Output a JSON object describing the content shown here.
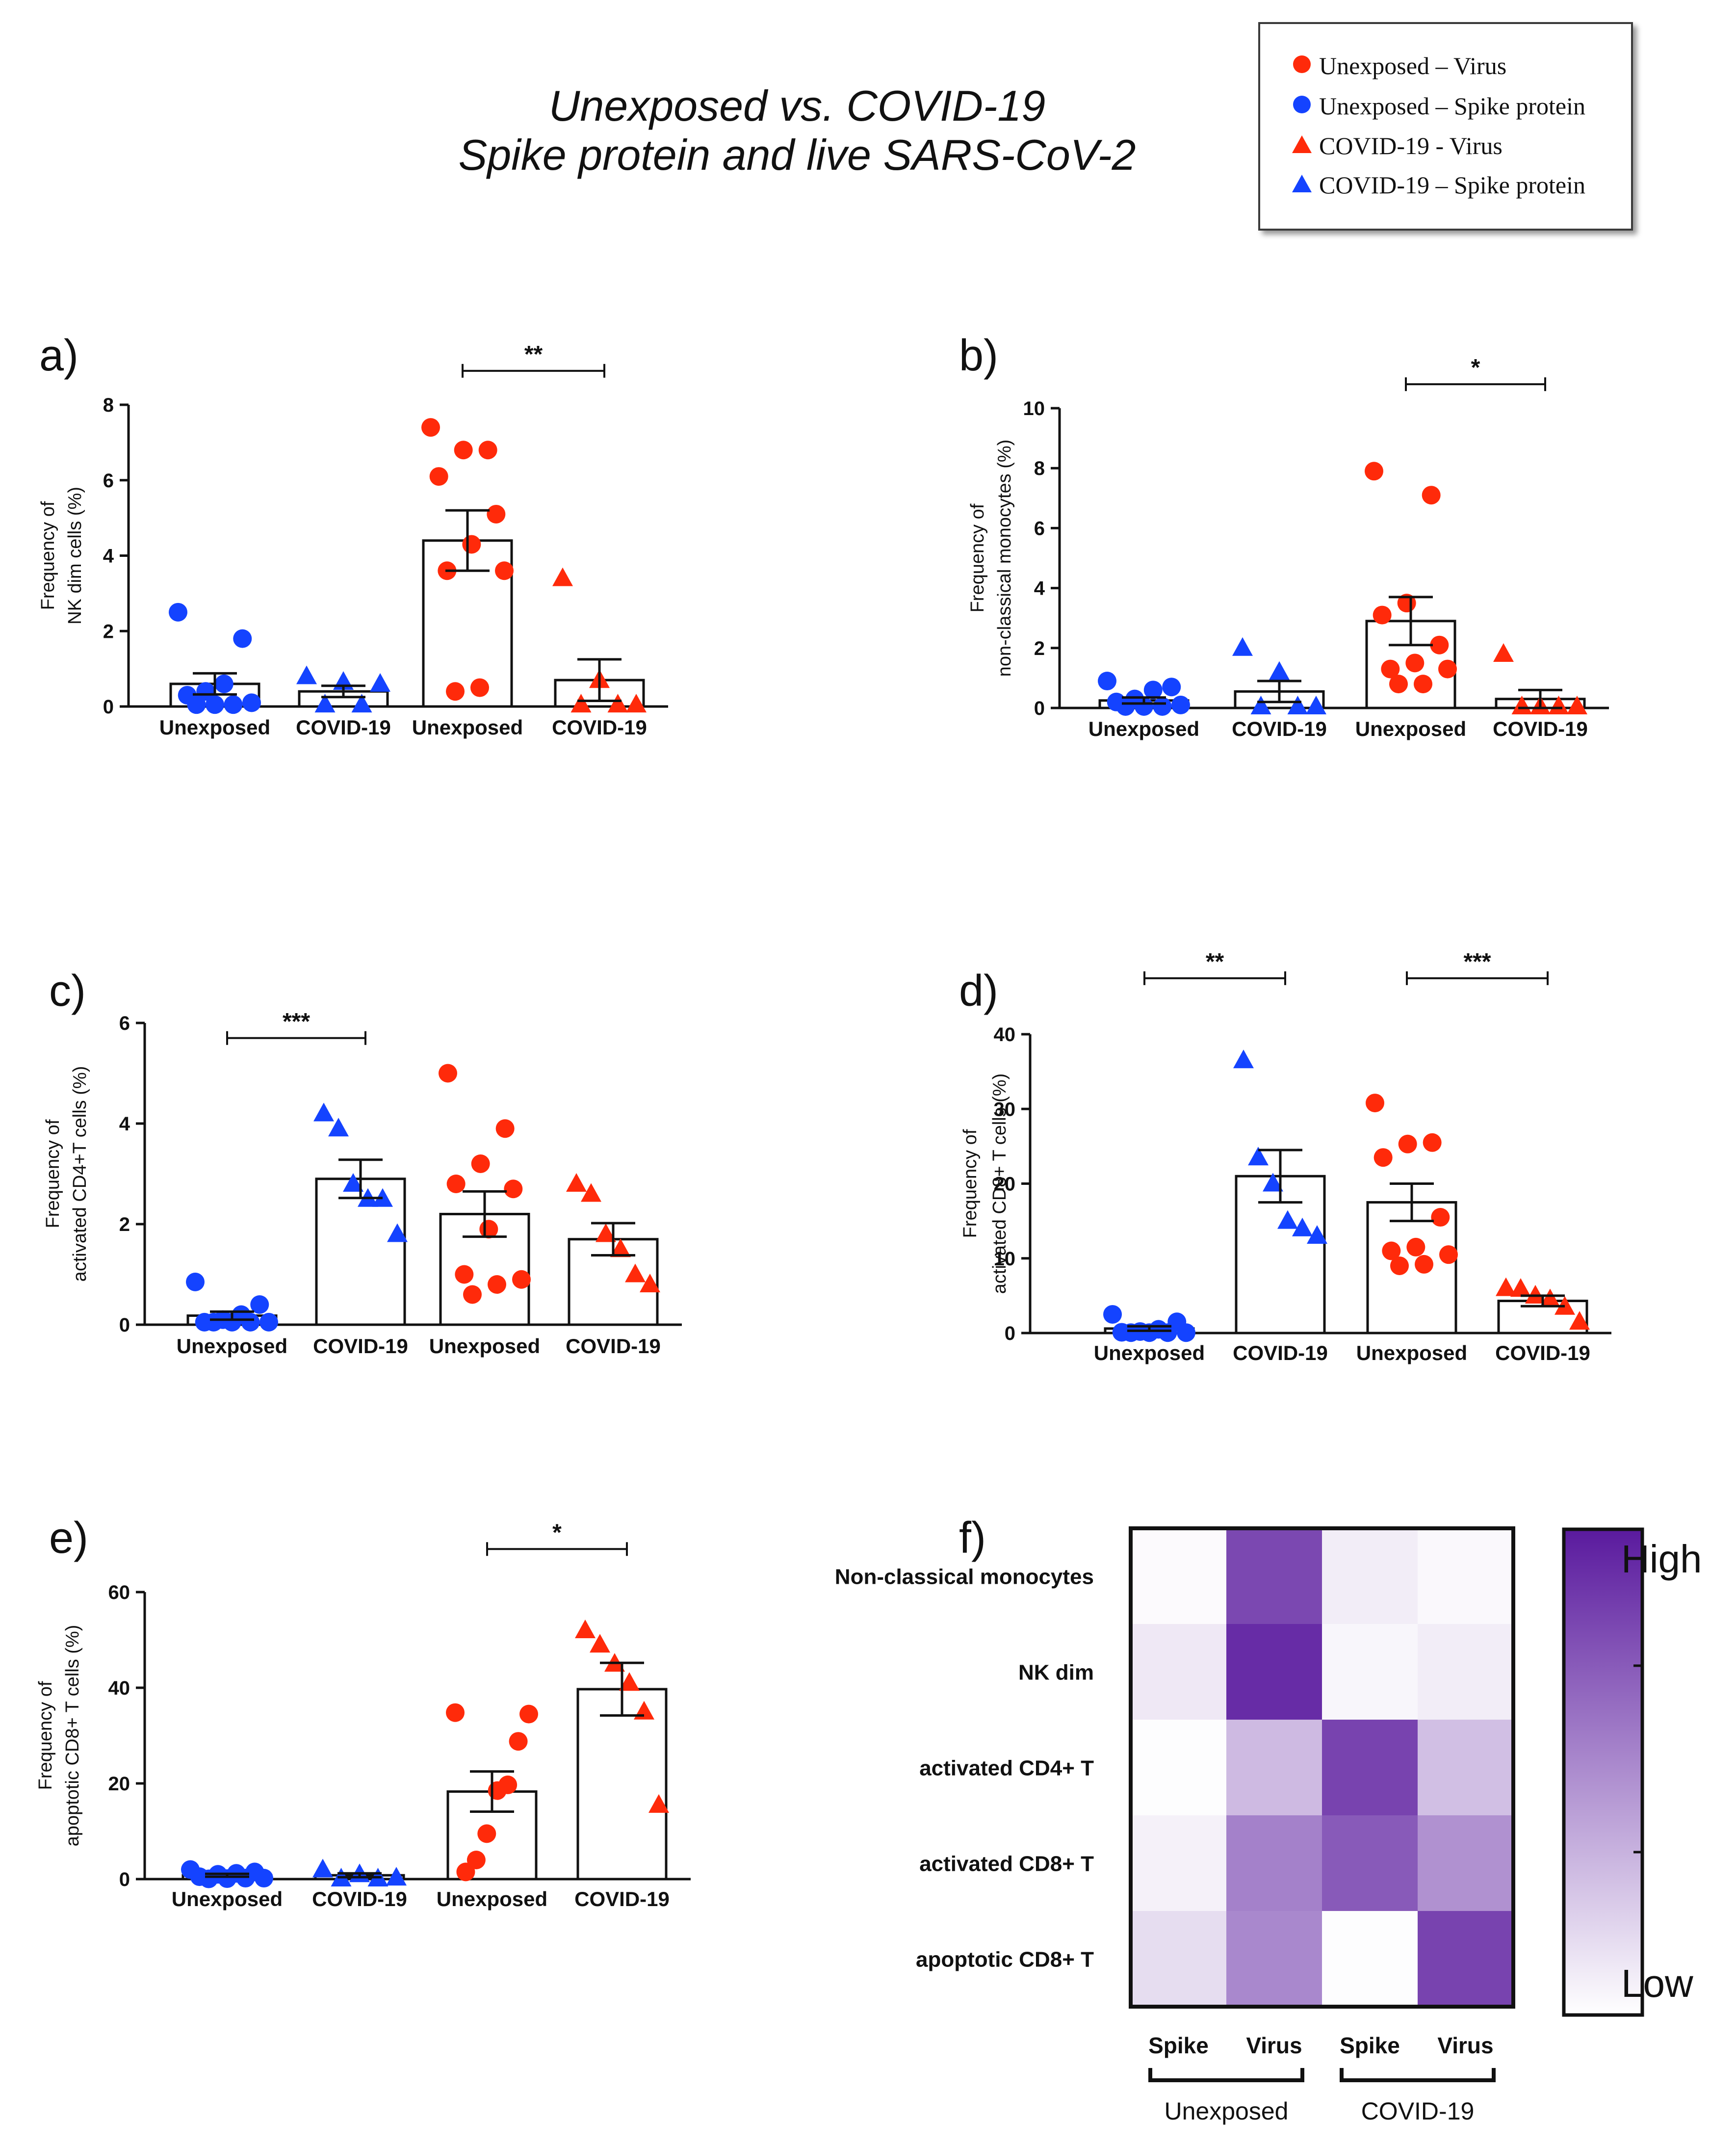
{
  "title": {
    "line1": "Unexposed vs. COVID-19",
    "line2": "Spike protein and live SARS-CoV-2"
  },
  "legend": {
    "items": [
      {
        "label": "Unexposed – Virus",
        "shape": "circle",
        "color": "#ff2a0a"
      },
      {
        "label": "Unexposed – Spike protein",
        "shape": "circle",
        "color": "#1443ff"
      },
      {
        "label": "COVID-19 - Virus",
        "shape": "triangle",
        "color": "#ff2a0a"
      },
      {
        "label": "COVID-19 – Spike protein",
        "shape": "triangle",
        "color": "#1443ff"
      }
    ]
  },
  "colors": {
    "virus": "#ff2a0a",
    "spike": "#1443ff",
    "heat_high": "#5a1a9e",
    "heat_low": "#ffffff"
  },
  "chart_data": [
    {
      "panel": "a)",
      "type": "bar",
      "ylabel_lines": [
        "Frequency of",
        "NK dim cells (%)"
      ],
      "ylabel_super": "dim",
      "ylim": [
        0,
        8
      ],
      "yticks": [
        0,
        2,
        4,
        6,
        8
      ],
      "categories": [
        "Unexposed",
        "COVID-19",
        "Unexposed",
        "COVID-19"
      ],
      "groups": [
        {
          "mean": 0.6,
          "sem": 0.28,
          "shape": "circle",
          "color": "spike",
          "points": [
            2.5,
            1.8,
            0.6,
            0.4,
            0.3,
            0.1,
            0.05,
            0.05,
            0.05
          ]
        },
        {
          "mean": 0.4,
          "sem": 0.15,
          "shape": "triangle",
          "color": "spike",
          "points": [
            0.8,
            0.65,
            0.6,
            0.05,
            0.05
          ]
        },
        {
          "mean": 4.4,
          "sem": 0.8,
          "shape": "circle",
          "color": "virus",
          "points": [
            7.4,
            6.8,
            6.8,
            6.1,
            5.1,
            4.3,
            3.6,
            3.6,
            0.5,
            0.4
          ]
        },
        {
          "mean": 0.7,
          "sem": 0.55,
          "shape": "triangle",
          "color": "virus",
          "points": [
            3.4,
            0.7,
            0.05,
            0.05,
            0.05
          ]
        }
      ],
      "significance": [
        {
          "from": 2,
          "to": 3,
          "label": "**",
          "y": 8.9
        }
      ]
    },
    {
      "panel": "b)",
      "type": "bar",
      "ylabel_lines": [
        "Frequency of",
        "non-classical monocytes (%)"
      ],
      "ylim": [
        0,
        10
      ],
      "yticks": [
        0,
        2,
        4,
        6,
        8,
        10
      ],
      "categories": [
        "Unexposed",
        "COVID-19",
        "Unexposed",
        "COVID-19"
      ],
      "groups": [
        {
          "mean": 0.25,
          "sem": 0.1,
          "shape": "circle",
          "color": "spike",
          "points": [
            0.9,
            0.7,
            0.6,
            0.3,
            0.2,
            0.1,
            0.05,
            0.05,
            0.05
          ]
        },
        {
          "mean": 0.55,
          "sem": 0.35,
          "shape": "triangle",
          "color": "spike",
          "points": [
            2.0,
            1.2,
            0.05,
            0.05,
            0.05
          ]
        },
        {
          "mean": 2.9,
          "sem": 0.8,
          "shape": "circle",
          "color": "virus",
          "points": [
            7.9,
            7.1,
            3.5,
            3.1,
            2.1,
            1.5,
            1.3,
            1.3,
            0.8,
            0.8
          ]
        },
        {
          "mean": 0.3,
          "sem": 0.3,
          "shape": "triangle",
          "color": "virus",
          "points": [
            1.8,
            0.05,
            0.05,
            0.05,
            0.05
          ]
        }
      ],
      "significance": [
        {
          "from": 2,
          "to": 3,
          "label": "*",
          "y": 10.8
        }
      ]
    },
    {
      "panel": "c)",
      "type": "bar",
      "ylabel_lines": [
        "Frequency of",
        "activated CD4+T cells (%)"
      ],
      "ylim": [
        0,
        6
      ],
      "yticks": [
        0,
        2,
        4,
        6
      ],
      "categories": [
        "Unexposed",
        "COVID-19",
        "Unexposed",
        "COVID-19"
      ],
      "groups": [
        {
          "mean": 0.18,
          "sem": 0.08,
          "shape": "circle",
          "color": "spike",
          "points": [
            0.85,
            0.4,
            0.2,
            0.1,
            0.05,
            0.05,
            0.05,
            0.05,
            0.05
          ]
        },
        {
          "mean": 2.9,
          "sem": 0.38,
          "shape": "triangle",
          "color": "spike",
          "points": [
            4.2,
            3.9,
            2.8,
            2.5,
            2.5,
            1.8
          ]
        },
        {
          "mean": 2.2,
          "sem": 0.45,
          "shape": "circle",
          "color": "virus",
          "points": [
            5.0,
            3.9,
            3.2,
            2.8,
            2.7,
            1.9,
            1.0,
            0.9,
            0.8,
            0.6
          ]
        },
        {
          "mean": 1.7,
          "sem": 0.32,
          "shape": "triangle",
          "color": "virus",
          "points": [
            2.8,
            2.6,
            1.8,
            1.5,
            1.0,
            0.8
          ]
        }
      ],
      "significance": [
        {
          "from": 0,
          "to": 1,
          "label": "***",
          "y": 5.7
        }
      ]
    },
    {
      "panel": "d)",
      "type": "bar",
      "ylabel_lines": [
        "Frequency of",
        "activated CD8+ T cells (%)"
      ],
      "ylim": [
        0,
        40
      ],
      "yticks": [
        0,
        10,
        20,
        30,
        40
      ],
      "categories": [
        "Unexposed",
        "COVID-19",
        "Unexposed",
        "COVID-19"
      ],
      "groups": [
        {
          "mean": 0.6,
          "sem": 0.3,
          "shape": "circle",
          "color": "spike",
          "points": [
            2.5,
            1.5,
            0.5,
            0.2,
            0.1,
            0.05,
            0.05,
            0.05,
            0.05
          ]
        },
        {
          "mean": 21.0,
          "sem": 3.5,
          "shape": "triangle",
          "color": "spike",
          "points": [
            36.5,
            23.5,
            20.0,
            15.0,
            14.0,
            13.0
          ]
        },
        {
          "mean": 17.5,
          "sem": 2.5,
          "shape": "circle",
          "color": "virus",
          "points": [
            30.8,
            25.5,
            25.3,
            23.5,
            15.5,
            11.5,
            11.0,
            10.5,
            9.2,
            9.0
          ]
        },
        {
          "mean": 4.3,
          "sem": 0.7,
          "shape": "triangle",
          "color": "virus",
          "points": [
            6.0,
            5.9,
            5.0,
            4.5,
            3.5,
            1.5
          ]
        }
      ],
      "significance": [
        {
          "from": 0,
          "to": 1,
          "label": "**",
          "y": 47.5
        },
        {
          "from": 2,
          "to": 3,
          "label": "***",
          "y": 47.5
        }
      ]
    },
    {
      "panel": "e)",
      "type": "bar",
      "ylabel_lines": [
        "Frequency of",
        "apoptotic CD8+ T cells (%)"
      ],
      "ylim": [
        0,
        60
      ],
      "yticks": [
        0,
        20,
        40,
        60
      ],
      "categories": [
        "Unexposed",
        "COVID-19",
        "Unexposed",
        "COVID-19"
      ],
      "groups": [
        {
          "mean": 0.8,
          "sem": 0.3,
          "shape": "circle",
          "color": "spike",
          "points": [
            2.0,
            1.5,
            1.2,
            1.0,
            0.5,
            0.2,
            0.2,
            0.1,
            0.05
          ]
        },
        {
          "mean": 0.8,
          "sem": 0.4,
          "shape": "triangle",
          "color": "spike",
          "points": [
            2.0,
            1.0,
            0.3,
            0.1,
            0.1
          ]
        },
        {
          "mean": 18.3,
          "sem": 4.2,
          "shape": "circle",
          "color": "virus",
          "points": [
            34.8,
            34.5,
            28.8,
            19.7,
            18.5,
            9.5,
            4.0,
            1.5
          ]
        },
        {
          "mean": 39.7,
          "sem": 5.5,
          "shape": "triangle",
          "color": "virus",
          "points": [
            52.0,
            49.0,
            45.0,
            41.0,
            35.0,
            15.5
          ]
        }
      ],
      "significance": [
        {
          "from": 2,
          "to": 3,
          "label": "*",
          "y": 69
        }
      ]
    },
    {
      "panel": "f)",
      "type": "heatmap",
      "rows": [
        "Non-classical monocytes",
        "NK dim",
        "activated CD4+ T",
        "activated CD8+ T",
        "apoptotic CD8+ T"
      ],
      "columns": [
        "Spike",
        "Virus",
        "Spike",
        "Virus"
      ],
      "column_groups": [
        {
          "label": "Unexposed",
          "from": 0,
          "to": 1
        },
        {
          "label": "COVID-19",
          "from": 2,
          "to": 3
        }
      ],
      "values": [
        [
          0.02,
          0.8,
          0.08,
          0.03
        ],
        [
          0.1,
          0.92,
          0.04,
          0.08
        ],
        [
          0.01,
          0.3,
          0.82,
          0.28
        ],
        [
          0.06,
          0.55,
          0.72,
          0.48
        ],
        [
          0.15,
          0.52,
          0.01,
          0.82
        ]
      ],
      "colorbar": {
        "high": "High",
        "low": "Low"
      }
    }
  ]
}
